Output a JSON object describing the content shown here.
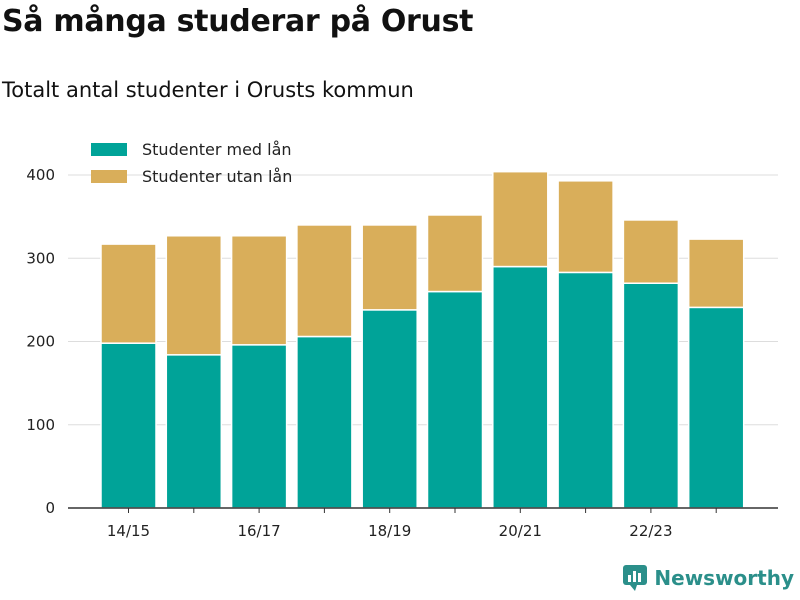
{
  "title": "Så många studerar på Orust",
  "subtitle": "Totalt antal studenter i Orusts kommun",
  "brand": "Newsworthy",
  "colors": {
    "with_loan": "#00a398",
    "without_loan": "#d9ae5a",
    "grid": "#dddddd",
    "axis": "#333333"
  },
  "chart_data": {
    "type": "bar",
    "stacked": true,
    "categories": [
      "14/15",
      "15/16",
      "16/17",
      "17/18",
      "18/19",
      "19/20",
      "20/21",
      "21/22",
      "22/23",
      "23/24"
    ],
    "tick_labels": [
      "14/15",
      "",
      "16/17",
      "",
      "18/19",
      "",
      "20/21",
      "",
      "22/23",
      ""
    ],
    "series": [
      {
        "name": "Studenter med lån",
        "values": [
          198,
          184,
          196,
          206,
          238,
          260,
          290,
          283,
          270,
          241
        ]
      },
      {
        "name": "Studenter utan lån",
        "values": [
          119,
          143,
          131,
          134,
          102,
          92,
          114,
          110,
          76,
          82
        ]
      }
    ],
    "ylim": [
      0,
      420
    ],
    "yticks": [
      0,
      100,
      200,
      300,
      400
    ],
    "grid": true,
    "legend": "top-left"
  }
}
